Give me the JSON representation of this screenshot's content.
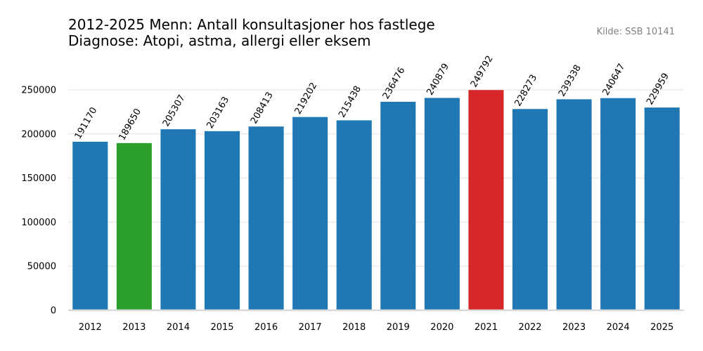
{
  "chart_data": {
    "type": "bar",
    "title_lines": [
      "2012-2025 Menn: Antall konsultasjoner hos fastlege",
      "Diagnose: Atopi, astma, allergi eller eksem"
    ],
    "source": "Kilde: SSB 10141",
    "categories": [
      "2012",
      "2013",
      "2014",
      "2015",
      "2016",
      "2017",
      "2018",
      "2019",
      "2020",
      "2021",
      "2022",
      "2023",
      "2024",
      "2025"
    ],
    "values": [
      191170,
      189650,
      205307,
      203163,
      208413,
      219202,
      215438,
      236476,
      240879,
      249792,
      228273,
      239338,
      240647,
      229959
    ],
    "data_labels": [
      "191170",
      "189650",
      "205307",
      "203163",
      "208413",
      "219202",
      "215438",
      "236476",
      "240879",
      "249792",
      "228273",
      "239338",
      "240647",
      "229959"
    ],
    "ylim": [
      0,
      250000
    ],
    "yticks": [
      0,
      50000,
      100000,
      150000,
      200000,
      250000
    ],
    "ytick_labels": [
      "0",
      "50000",
      "100000",
      "150000",
      "200000",
      "250000"
    ],
    "xlabel": "",
    "ylabel": "",
    "grid": "horizontal",
    "colors": {
      "default": "#1f77b4",
      "min": "#2ca02c",
      "max": "#d62728",
      "grid": "#ebebeb",
      "baseline": "#d9d9d9",
      "source_text": "#808080"
    },
    "highlight": {
      "min_category": "2013",
      "max_category": "2021"
    }
  }
}
